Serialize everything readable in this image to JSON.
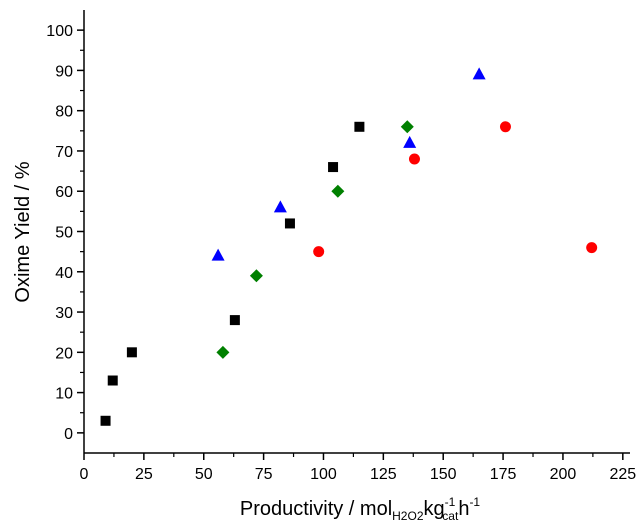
{
  "chart_data": {
    "type": "scatter",
    "xlabel": {
      "main": "Productivity / mol",
      "sub1": "H2O2",
      "mid": "kg",
      "sup1": "-1",
      "sub2": "cat",
      "tail": "h",
      "sup2": "-1"
    },
    "ylabel": "Oxime Yield / %",
    "xlim": [
      0,
      228
    ],
    "ylim": [
      -5,
      105
    ],
    "x_ticks": [
      0,
      25,
      50,
      75,
      100,
      125,
      150,
      175,
      200,
      225
    ],
    "y_ticks": [
      0,
      10,
      20,
      30,
      40,
      50,
      60,
      70,
      80,
      90,
      100
    ],
    "grid": false,
    "legend": "none",
    "series": [
      {
        "marker": "square",
        "color": "#000000",
        "points": [
          [
            9,
            3
          ],
          [
            12,
            13
          ],
          [
            20,
            20
          ],
          [
            63,
            28
          ],
          [
            86,
            52
          ],
          [
            104,
            66
          ],
          [
            115,
            76
          ]
        ]
      },
      {
        "marker": "diamond",
        "color": "#008000",
        "points": [
          [
            58,
            20
          ],
          [
            72,
            39
          ],
          [
            106,
            60
          ],
          [
            135,
            76
          ]
        ]
      },
      {
        "marker": "triangle",
        "color": "#0000ff",
        "points": [
          [
            56,
            44
          ],
          [
            82,
            56
          ],
          [
            136,
            72
          ],
          [
            165,
            89
          ]
        ]
      },
      {
        "marker": "circle",
        "color": "#ff0000",
        "points": [
          [
            98,
            45
          ],
          [
            138,
            68
          ],
          [
            176,
            76
          ],
          [
            212,
            46
          ]
        ]
      }
    ]
  }
}
